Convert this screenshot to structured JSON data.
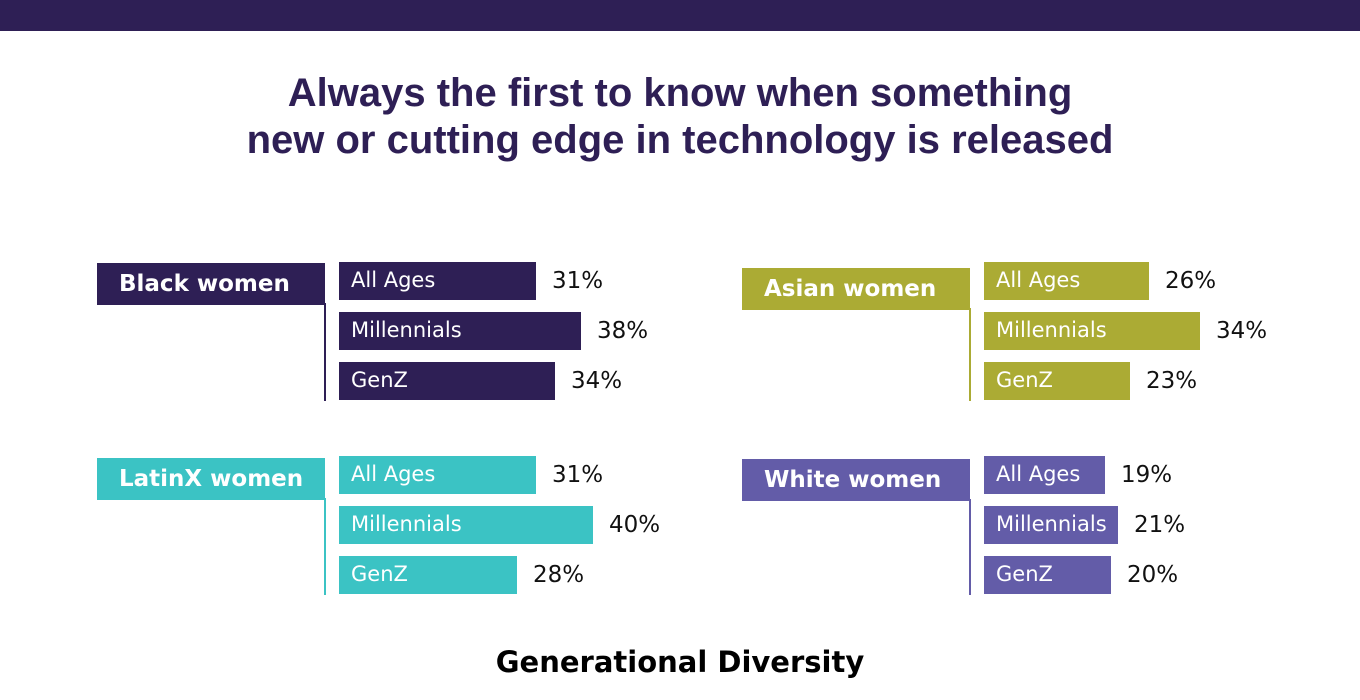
{
  "title_lines": [
    "Always the first to know when something",
    "new or cutting edge in technology is released"
  ],
  "footer": "Generational Diversity",
  "colors": {
    "band": "#2e1f55",
    "title": "#2e1f55",
    "black_women": "#2e1f55",
    "asian_women": "#abab34",
    "latinx_women": "#3bc3c4",
    "white_women": "#635ca8"
  },
  "chart_data": {
    "type": "bar",
    "orientation": "horizontal",
    "title": "Always the first to know when something new or cutting edge in technology is released",
    "categories": [
      "All Ages",
      "Millennials",
      "GenZ"
    ],
    "unit": "%",
    "series": [
      {
        "name": "Black women",
        "color": "#2e1f55",
        "values": [
          31,
          38,
          34
        ]
      },
      {
        "name": "Asian women",
        "color": "#abab34",
        "values": [
          26,
          34,
          23
        ]
      },
      {
        "name": "LatinX women",
        "color": "#3bc3c4",
        "values": [
          31,
          40,
          28
        ]
      },
      {
        "name": "White women",
        "color": "#635ca8",
        "values": [
          19,
          21,
          20
        ]
      }
    ]
  }
}
